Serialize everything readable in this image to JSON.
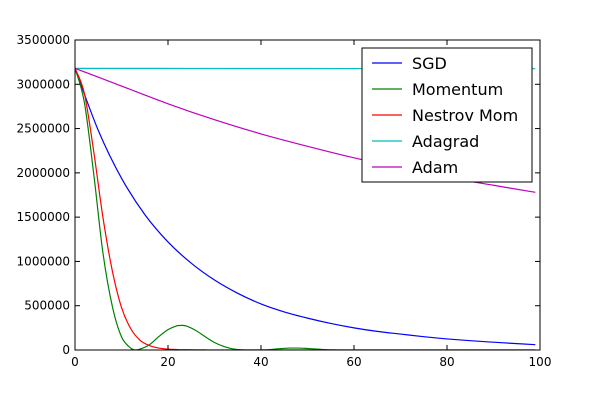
{
  "chart_data": {
    "type": "line",
    "title": "",
    "xlabel": "",
    "ylabel": "",
    "xlim": [
      0,
      100
    ],
    "ylim": [
      0,
      3500000
    ],
    "xticks": [
      0,
      20,
      40,
      60,
      80,
      100
    ],
    "yticks": [
      0,
      500000,
      1000000,
      1500000,
      2000000,
      2500000,
      3000000,
      3500000
    ],
    "grid": false,
    "legend_position": "top-right",
    "series": [
      {
        "name": "SGD",
        "color": "#0000ff",
        "x": [
          0,
          5,
          10,
          15,
          20,
          25,
          30,
          35,
          40,
          45,
          50,
          55,
          60,
          65,
          70,
          75,
          80,
          85,
          90,
          95,
          99
        ],
        "y": [
          3180000,
          2480000,
          1940000,
          1530000,
          1220000,
          980000,
          790000,
          640000,
          520000,
          430000,
          360000,
          300000,
          250000,
          210000,
          180000,
          150000,
          125000,
          105000,
          88000,
          72000,
          60000
        ]
      },
      {
        "name": "Momentum",
        "color": "#008000",
        "x": [
          0,
          2,
          4,
          6,
          8,
          10,
          12,
          13,
          14,
          16,
          18,
          20,
          22,
          23,
          24,
          26,
          28,
          30,
          32,
          34,
          36,
          38,
          40,
          42,
          44,
          46,
          48,
          50,
          52,
          54,
          56,
          60,
          70,
          80,
          90,
          99
        ],
        "y": [
          3180000,
          2800000,
          2000000,
          1100000,
          500000,
          150000,
          20000,
          0,
          10000,
          60000,
          150000,
          230000,
          275000,
          278000,
          270000,
          220000,
          150000,
          85000,
          40000,
          12000,
          2000,
          0,
          0,
          5000,
          15000,
          22000,
          22000,
          17000,
          10000,
          4000,
          1000,
          0,
          0,
          0,
          0,
          0
        ]
      },
      {
        "name": "Nestrov Mom",
        "color": "#ff0000",
        "x": [
          0,
          2,
          4,
          6,
          8,
          10,
          12,
          14,
          16,
          18,
          20,
          22,
          24,
          26,
          28,
          30,
          35,
          40,
          50,
          60,
          70,
          80,
          90,
          99
        ],
        "y": [
          3180000,
          2900000,
          2250000,
          1500000,
          900000,
          480000,
          240000,
          110000,
          50000,
          22000,
          10000,
          5000,
          3000,
          1500,
          1000,
          500,
          0,
          0,
          0,
          0,
          0,
          0,
          0,
          0
        ]
      },
      {
        "name": "Adagrad",
        "color": "#00bfbf",
        "x": [
          0,
          25,
          50,
          75,
          99
        ],
        "y": [
          3180000,
          3179000,
          3178000,
          3177000,
          3176000
        ]
      },
      {
        "name": "Adam",
        "color": "#bf00bf",
        "x": [
          0,
          10,
          20,
          30,
          40,
          50,
          60,
          70,
          80,
          90,
          99
        ],
        "y": [
          3180000,
          2980000,
          2780000,
          2600000,
          2440000,
          2300000,
          2170000,
          2060000,
          1950000,
          1860000,
          1780000
        ]
      }
    ]
  }
}
